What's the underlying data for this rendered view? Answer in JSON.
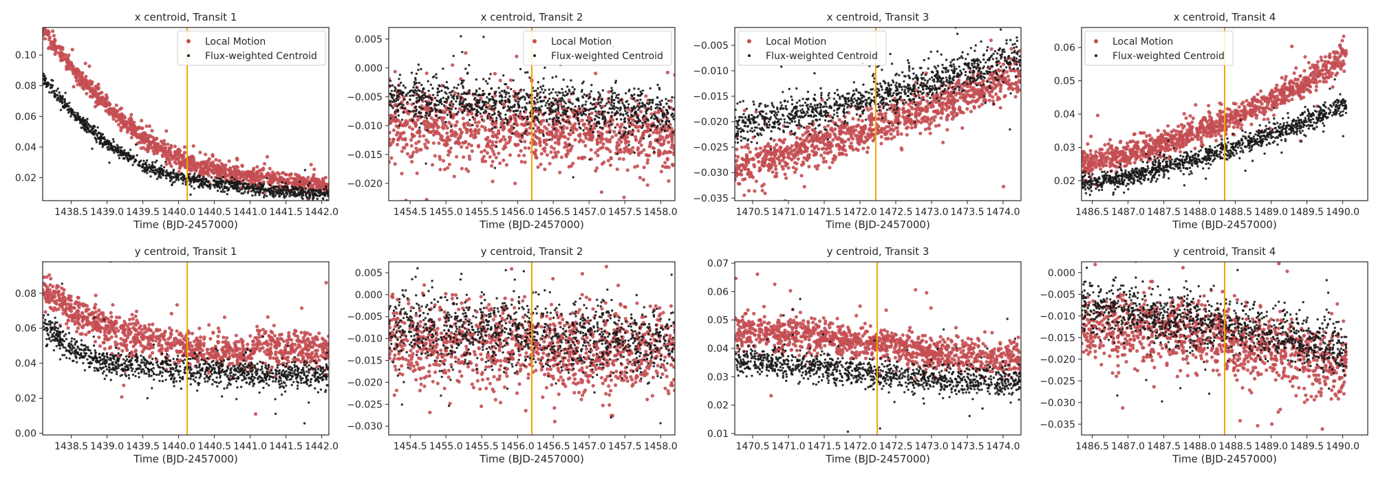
{
  "figure": {
    "colors": {
      "local": "#c44e52",
      "flux": "#1a1a1a",
      "transit_line": "#f0a500"
    },
    "legend_labels": [
      "Local Motion",
      "Flux-weighted Centroid"
    ]
  },
  "chart_data": [
    {
      "type": "scatter",
      "title": "x centroid, Transit 1",
      "xlabel": "Time (BJD-2457000)",
      "xlim": [
        1438.1,
        1442.1
      ],
      "ylim": [
        0.005,
        0.118
      ],
      "xticks": [
        1438.5,
        1439.0,
        1439.5,
        1440.0,
        1440.5,
        1441.0,
        1441.5,
        1442.0
      ],
      "yticks": [
        0.02,
        0.04,
        0.06,
        0.08,
        0.1
      ],
      "ytick_labels": [
        "0.02",
        "0.04",
        "0.06",
        "0.08",
        "0.10"
      ],
      "transit_time": 1440.12,
      "legend": "top-right",
      "series": [
        {
          "name": "Local Motion",
          "x": [
            1438.1,
            1438.5,
            1439.0,
            1439.5,
            1440.0,
            1440.5,
            1441.0,
            1441.5,
            1442.1
          ],
          "y": [
            0.118,
            0.092,
            0.066,
            0.046,
            0.032,
            0.025,
            0.021,
            0.018,
            0.015
          ],
          "scatter": 0.003
        },
        {
          "name": "Flux-weighted Centroid",
          "x": [
            1438.1,
            1438.5,
            1439.0,
            1439.5,
            1440.0,
            1440.5,
            1441.0,
            1441.5,
            1442.1
          ],
          "y": [
            0.085,
            0.063,
            0.042,
            0.028,
            0.02,
            0.016,
            0.013,
            0.011,
            0.009
          ],
          "scatter": 0.002
        }
      ]
    },
    {
      "type": "scatter",
      "title": "x centroid, Transit 2",
      "xlabel": "Time (BJD-2457000)",
      "xlim": [
        1454.2,
        1458.2
      ],
      "ylim": [
        -0.023,
        0.007
      ],
      "xticks": [
        1454.5,
        1455.0,
        1455.5,
        1456.0,
        1456.5,
        1457.0,
        1457.5,
        1458.0
      ],
      "yticks": [
        -0.02,
        -0.015,
        -0.01,
        -0.005,
        0.0,
        0.005
      ],
      "ytick_labels": [
        "−0.020",
        "−0.015",
        "−0.010",
        "−0.005",
        "0.000",
        "0.005"
      ],
      "transit_time": 1456.2,
      "legend": "top-right",
      "series": [
        {
          "name": "Local Motion",
          "x": [
            1454.2,
            1456.2,
            1458.2
          ],
          "y": [
            -0.01,
            -0.011,
            -0.012
          ],
          "scatter": 0.003
        },
        {
          "name": "Flux-weighted Centroid",
          "x": [
            1454.2,
            1456.2,
            1458.2
          ],
          "y": [
            -0.005,
            -0.0065,
            -0.008
          ],
          "scatter": 0.002
        }
      ]
    },
    {
      "type": "scatter",
      "title": "x centroid, Transit 3",
      "xlabel": "Time (BJD-2457000)",
      "xlim": [
        1470.25,
        1474.25
      ],
      "ylim": [
        -0.0355,
        -0.0015
      ],
      "xticks": [
        1470.5,
        1471.0,
        1471.5,
        1472.0,
        1472.5,
        1473.0,
        1473.5,
        1474.0
      ],
      "yticks": [
        -0.035,
        -0.03,
        -0.025,
        -0.02,
        -0.015,
        -0.01,
        -0.005
      ],
      "ytick_labels": [
        "−0.035",
        "−0.030",
        "−0.025",
        "−0.020",
        "−0.015",
        "−0.010",
        "−0.005"
      ],
      "transit_time": 1472.22,
      "legend": "top-left",
      "series": [
        {
          "name": "Local Motion",
          "x": [
            1470.25,
            1472.25,
            1474.25
          ],
          "y": [
            -0.029,
            -0.021,
            -0.011
          ],
          "scatter": 0.002
        },
        {
          "name": "Flux-weighted Centroid",
          "x": [
            1470.25,
            1472.25,
            1474.25
          ],
          "y": [
            -0.021,
            -0.015,
            -0.007
          ],
          "scatter": 0.0018
        }
      ]
    },
    {
      "type": "scatter",
      "title": "x centroid, Transit 4",
      "xlabel": "Time (BJD-2457000)",
      "xlim": [
        1486.35,
        1490.35
      ],
      "ylim": [
        0.014,
        0.066
      ],
      "xticks": [
        1486.5,
        1487.0,
        1487.5,
        1488.0,
        1488.5,
        1489.0,
        1489.5,
        1490.0
      ],
      "yticks": [
        0.02,
        0.03,
        0.04,
        0.05,
        0.06
      ],
      "ytick_labels": [
        "0.02",
        "0.03",
        "0.04",
        "0.05",
        "0.06"
      ],
      "transit_time": 1488.35,
      "legend": "top-left",
      "series": [
        {
          "name": "Local Motion",
          "x": [
            1486.35,
            1487.0,
            1487.5,
            1488.0,
            1488.5,
            1489.0,
            1489.5,
            1490.05
          ],
          "y": [
            0.025,
            0.028,
            0.031,
            0.035,
            0.039,
            0.044,
            0.05,
            0.058
          ],
          "scatter": 0.002
        },
        {
          "name": "Flux-weighted Centroid",
          "x": [
            1486.35,
            1487.0,
            1487.5,
            1488.0,
            1488.5,
            1489.0,
            1489.5,
            1490.05
          ],
          "y": [
            0.019,
            0.021,
            0.024,
            0.027,
            0.03,
            0.034,
            0.038,
            0.043
          ],
          "scatter": 0.0015
        }
      ]
    },
    {
      "type": "scatter",
      "title": "y centroid, Transit 1",
      "xlabel": "Time (BJD-2457000)",
      "xlim": [
        1438.1,
        1442.1
      ],
      "ylim": [
        -0.001,
        0.098
      ],
      "xticks": [
        1438.5,
        1439.0,
        1439.5,
        1440.0,
        1440.5,
        1441.0,
        1441.5,
        1442.0
      ],
      "yticks": [
        0.0,
        0.02,
        0.04,
        0.06,
        0.08
      ],
      "ytick_labels": [
        "0.00",
        "0.02",
        "0.04",
        "0.06",
        "0.08"
      ],
      "transit_time": 1440.12,
      "series": [
        {
          "name": "Local Motion",
          "x": [
            1438.1,
            1438.5,
            1439.0,
            1439.5,
            1440.0,
            1440.5,
            1441.0,
            1441.1,
            1441.5,
            1442.1
          ],
          "y": [
            0.083,
            0.07,
            0.06,
            0.054,
            0.05,
            0.046,
            0.044,
            0.05,
            0.048,
            0.046
          ],
          "scatter": 0.005
        },
        {
          "name": "Flux-weighted Centroid",
          "x": [
            1438.1,
            1438.5,
            1439.0,
            1439.5,
            1440.0,
            1440.5,
            1441.0,
            1441.1,
            1441.5,
            1442.1
          ],
          "y": [
            0.063,
            0.048,
            0.04,
            0.038,
            0.036,
            0.035,
            0.034,
            0.033,
            0.033,
            0.033
          ],
          "scatter": 0.004
        }
      ]
    },
    {
      "type": "scatter",
      "title": "y centroid, Transit 2",
      "xlabel": "Time (BJD-2457000)",
      "xlim": [
        1454.2,
        1458.2
      ],
      "ylim": [
        -0.032,
        0.0075
      ],
      "xticks": [
        1454.5,
        1455.0,
        1455.5,
        1456.0,
        1456.5,
        1457.0,
        1457.5,
        1458.0
      ],
      "yticks": [
        -0.03,
        -0.025,
        -0.02,
        -0.015,
        -0.01,
        -0.005,
        0.0,
        0.005
      ],
      "ytick_labels": [
        "−0.030",
        "−0.025",
        "−0.020",
        "−0.015",
        "−0.010",
        "−0.005",
        "0.000",
        "0.005"
      ],
      "transit_time": 1456.2,
      "series": [
        {
          "name": "Local Motion",
          "x": [
            1454.2,
            1456.2,
            1458.2
          ],
          "y": [
            -0.01,
            -0.012,
            -0.013
          ],
          "scatter": 0.005
        },
        {
          "name": "Flux-weighted Centroid",
          "x": [
            1454.2,
            1456.2,
            1458.2
          ],
          "y": [
            -0.007,
            -0.009,
            -0.011
          ],
          "scatter": 0.004
        }
      ]
    },
    {
      "type": "scatter",
      "title": "y centroid, Transit 3",
      "xlabel": "Time (BJD-2457000)",
      "xlim": [
        1470.25,
        1474.25
      ],
      "ylim": [
        0.0095,
        0.0705
      ],
      "xticks": [
        1470.5,
        1471.0,
        1471.5,
        1472.0,
        1472.5,
        1473.0,
        1473.5,
        1474.0
      ],
      "yticks": [
        0.01,
        0.02,
        0.03,
        0.04,
        0.05,
        0.06,
        0.07
      ],
      "ytick_labels": [
        "0.01",
        "0.02",
        "0.03",
        "0.04",
        "0.05",
        "0.06",
        "0.07"
      ],
      "transit_time": 1472.24,
      "series": [
        {
          "name": "Local Motion",
          "x": [
            1470.25,
            1471.5,
            1472.25,
            1473.0,
            1474.25
          ],
          "y": [
            0.046,
            0.044,
            0.042,
            0.038,
            0.036
          ],
          "scatter": 0.003
        },
        {
          "name": "Flux-weighted Centroid",
          "x": [
            1470.25,
            1471.5,
            1472.25,
            1473.0,
            1474.25
          ],
          "y": [
            0.036,
            0.033,
            0.031,
            0.029,
            0.028
          ],
          "scatter": 0.0025
        }
      ]
    },
    {
      "type": "scatter",
      "title": "y centroid, Transit 4",
      "xlabel": "Time (BJD-2457000)",
      "xlim": [
        1486.35,
        1490.35
      ],
      "ylim": [
        -0.0375,
        0.0025
      ],
      "xticks": [
        1486.5,
        1487.0,
        1487.5,
        1488.0,
        1488.5,
        1489.0,
        1489.5,
        1490.0
      ],
      "yticks": [
        -0.035,
        -0.03,
        -0.025,
        -0.02,
        -0.015,
        -0.01,
        -0.005,
        0.0
      ],
      "ytick_labels": [
        "−0.035",
        "−0.030",
        "−0.025",
        "−0.020",
        "−0.015",
        "−0.010",
        "−0.005",
        "0.000"
      ],
      "transit_time": 1488.35,
      "series": [
        {
          "name": "Local Motion",
          "x": [
            1486.35,
            1488.35,
            1490.05
          ],
          "y": [
            -0.012,
            -0.015,
            -0.022
          ],
          "scatter": 0.004
        },
        {
          "name": "Flux-weighted Centroid",
          "x": [
            1486.35,
            1488.35,
            1490.05
          ],
          "y": [
            -0.008,
            -0.012,
            -0.018
          ],
          "scatter": 0.003
        }
      ]
    }
  ]
}
